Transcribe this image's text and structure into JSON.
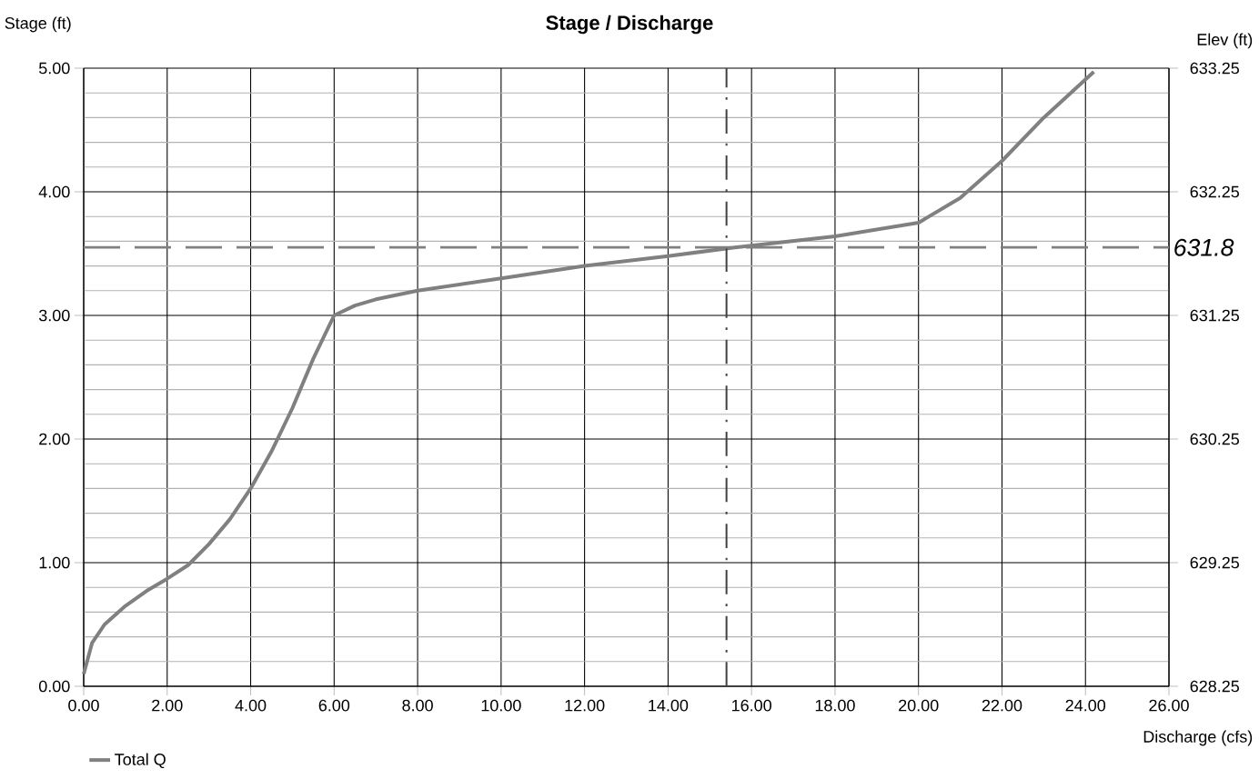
{
  "chart_data": {
    "type": "line",
    "title": "Stage / Discharge",
    "xlabel": "Discharge (cfs)",
    "ylabel": "Stage (ft)",
    "y2label": "Elev (ft)",
    "series": [
      {
        "name": "Total Q",
        "color": "#808080",
        "x": [
          0,
          0.2,
          0.5,
          1,
          1.5,
          2,
          2.5,
          3,
          3.5,
          4,
          4.5,
          5,
          5.5,
          6,
          6.5,
          7,
          8,
          10,
          12,
          14,
          15.6,
          18,
          20,
          21,
          22,
          23,
          24.2
        ],
        "values": [
          0.1,
          0.35,
          0.5,
          0.65,
          0.77,
          0.87,
          0.98,
          1.15,
          1.35,
          1.6,
          1.9,
          2.25,
          2.65,
          3.0,
          3.08,
          3.13,
          3.2,
          3.3,
          3.4,
          3.48,
          3.55,
          3.64,
          3.75,
          3.95,
          4.25,
          4.6,
          4.97
        ]
      }
    ],
    "xlim": [
      0,
      26
    ],
    "xticks": [
      {
        "value": 0,
        "label": "0.00"
      },
      {
        "value": 2,
        "label": "2.00"
      },
      {
        "value": 4,
        "label": "4.00"
      },
      {
        "value": 6,
        "label": "6.00"
      },
      {
        "value": 8,
        "label": "8.00"
      },
      {
        "value": 10,
        "label": "10.00"
      },
      {
        "value": 12,
        "label": "12.00"
      },
      {
        "value": 14,
        "label": "14.00"
      },
      {
        "value": 16,
        "label": "16.00"
      },
      {
        "value": 18,
        "label": "18.00"
      },
      {
        "value": 20,
        "label": "20.00"
      },
      {
        "value": 22,
        "label": "22.00"
      },
      {
        "value": 24,
        "label": "24.00"
      },
      {
        "value": 26,
        "label": "26.00"
      }
    ],
    "ylim": [
      0,
      5
    ],
    "yticks": [
      {
        "value": 0,
        "label": "0.00"
      },
      {
        "value": 1,
        "label": "1.00"
      },
      {
        "value": 2,
        "label": "2.00"
      },
      {
        "value": 3,
        "label": "3.00"
      },
      {
        "value": 4,
        "label": "4.00"
      },
      {
        "value": 5,
        "label": "5.00"
      }
    ],
    "y2lim": [
      628.25,
      633.25
    ],
    "y2ticks": [
      628.25,
      629.25,
      630.25,
      631.25,
      632.25,
      633.25
    ],
    "ref_lines": [
      {
        "axis": "y2",
        "value": 631.8,
        "label": "631.8",
        "color": "#808080",
        "line_style": "dashed"
      },
      {
        "axis": "x",
        "value": 15.4,
        "color": "#404040",
        "line_style": "dashed"
      }
    ],
    "grid": true,
    "legend": "bottom left",
    "marker": "none",
    "line_style": "solid"
  }
}
